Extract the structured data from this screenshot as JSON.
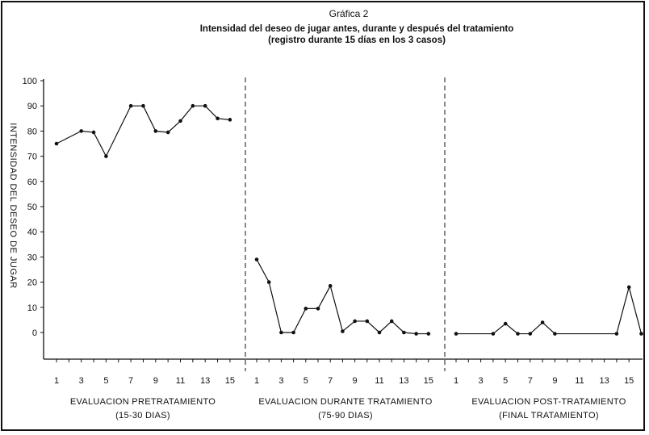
{
  "header": {
    "title": "Gráfica 2",
    "subtitle": "Intensidad del deseo de jugar antes, durante y después del tratamiento",
    "subtitle2": "(registro durante 15 días en los 3 casos)"
  },
  "chart_data": {
    "type": "line",
    "ylabel": "INTENSIDAD DEL DESEO DE JUGAR",
    "ylim": [
      0,
      100
    ],
    "yticks": [
      "0",
      "10",
      "20",
      "30",
      "40",
      "50",
      "60",
      "70",
      "80",
      "90",
      "100"
    ],
    "grid": false,
    "panels": [
      {
        "name": "EVALUACION PRETRATAMIENTO",
        "range": "(15-30 DIAS)",
        "xticks": [
          "1",
          "3",
          "5",
          "7",
          "9",
          "11",
          "13",
          "15"
        ],
        "x": [
          1,
          3,
          4,
          5,
          7,
          8,
          9,
          10,
          11,
          12,
          13,
          14,
          15
        ],
        "y": [
          75,
          80,
          79.5,
          70,
          90,
          90,
          80,
          79.5,
          84,
          90,
          90,
          85,
          84.5
        ]
      },
      {
        "name": "EVALUACION DURANTE TRATAMIENTO",
        "range": "(75-90 DIAS)",
        "xticks": [
          "1",
          "3",
          "5",
          "7",
          "9",
          "11",
          "13",
          "15"
        ],
        "x": [
          1,
          2,
          3,
          4,
          5,
          6,
          7,
          8,
          9,
          10,
          11,
          12,
          13,
          14,
          15
        ],
        "y": [
          29,
          20,
          0,
          0,
          9.5,
          9.5,
          18.5,
          0.5,
          4.5,
          4.5,
          0,
          4.5,
          0,
          -0.5,
          -0.5
        ]
      },
      {
        "name": "EVALUACION POST-TRATAMIENTO",
        "range": "(FINAL TRATAMIENTO)",
        "xticks": [
          "1",
          "3",
          "5",
          "7",
          "9",
          "11",
          "13",
          "15"
        ],
        "x": [
          1,
          4,
          5,
          6,
          7,
          8,
          9,
          14,
          15,
          16
        ],
        "y": [
          -0.5,
          -0.5,
          3.5,
          -0.5,
          -0.5,
          4,
          -0.5,
          -0.5,
          18,
          -0.5
        ]
      }
    ]
  }
}
